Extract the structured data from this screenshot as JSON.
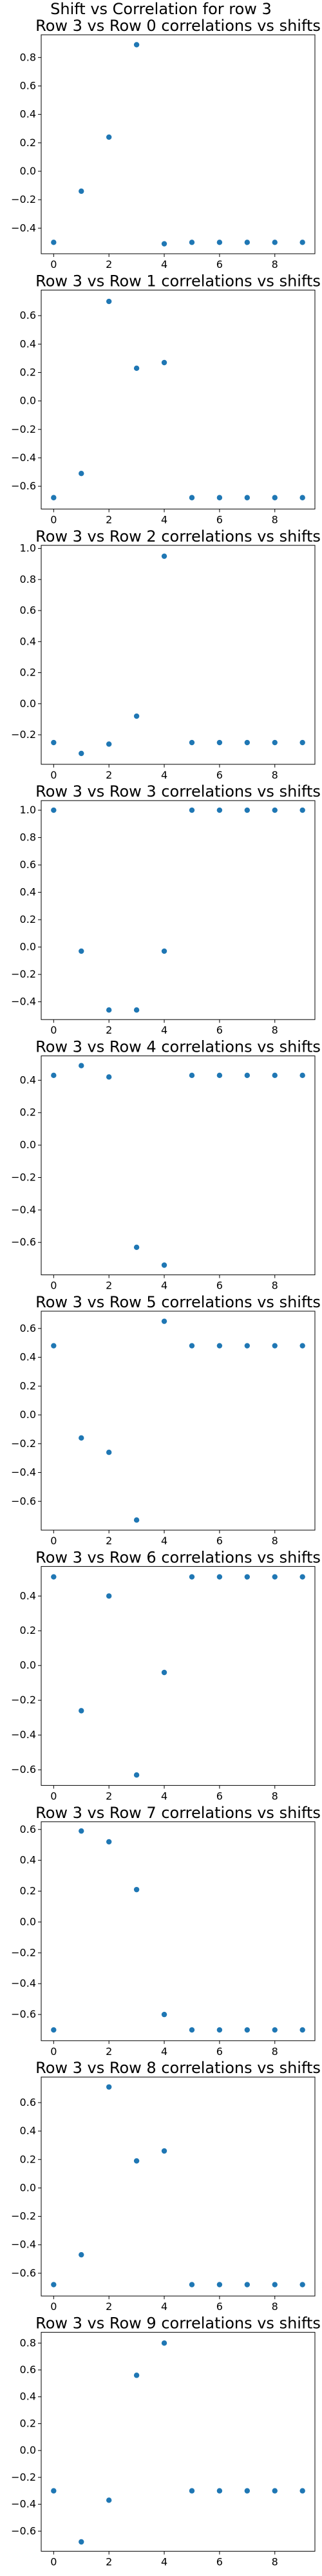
{
  "figure": {
    "suptitle": "Shift vs Correlation for row 3"
  },
  "chart_data": [
    {
      "type": "scatter",
      "title": "Row 3 vs Row 0 correlations vs shifts",
      "xlabel": "",
      "ylabel": "",
      "x": [
        0,
        1,
        2,
        3,
        4,
        5,
        6,
        7,
        8,
        9
      ],
      "y": [
        -0.5,
        -0.14,
        0.24,
        0.89,
        -0.51,
        -0.5,
        -0.5,
        -0.5,
        -0.5,
        -0.5
      ],
      "xlim": [
        -0.45,
        9.45
      ],
      "ylim": [
        -0.58,
        0.96
      ],
      "xticks": [
        0,
        2,
        4,
        6,
        8
      ],
      "yticks": [
        -0.4,
        -0.2,
        0.0,
        0.2,
        0.4,
        0.6,
        0.8
      ],
      "ytick_labels": [
        "−0.4",
        "−0.2",
        "0.0",
        "0.2",
        "0.4",
        "0.6",
        "0.8"
      ],
      "xtick_labels": [
        "0",
        "2",
        "4",
        "6",
        "8"
      ]
    },
    {
      "type": "scatter",
      "title": "Row 3 vs Row 1 correlations vs shifts",
      "xlabel": "",
      "ylabel": "",
      "x": [
        0,
        1,
        2,
        3,
        4,
        5,
        6,
        7,
        8,
        9
      ],
      "y": [
        -0.68,
        -0.51,
        0.7,
        0.23,
        0.27,
        -0.68,
        -0.68,
        -0.68,
        -0.68,
        -0.68
      ],
      "xlim": [
        -0.45,
        9.45
      ],
      "ylim": [
        -0.76,
        0.78
      ],
      "xticks": [
        0,
        2,
        4,
        6,
        8
      ],
      "yticks": [
        -0.6,
        -0.4,
        -0.2,
        0.0,
        0.2,
        0.4,
        0.6
      ],
      "ytick_labels": [
        "−0.6",
        "−0.4",
        "−0.2",
        "0.0",
        "0.2",
        "0.4",
        "0.6"
      ],
      "xtick_labels": [
        "0",
        "2",
        "4",
        "6",
        "8"
      ]
    },
    {
      "type": "scatter",
      "title": "Row 3 vs Row 2 correlations vs shifts",
      "xlabel": "",
      "ylabel": "",
      "x": [
        0,
        1,
        2,
        3,
        4,
        5,
        6,
        7,
        8,
        9
      ],
      "y": [
        -0.25,
        -0.32,
        -0.26,
        -0.08,
        0.95,
        -0.25,
        -0.25,
        -0.25,
        -0.25,
        -0.25
      ],
      "xlim": [
        -0.45,
        9.45
      ],
      "ylim": [
        -0.39,
        1.02
      ],
      "xticks": [
        0,
        2,
        4,
        6,
        8
      ],
      "yticks": [
        -0.2,
        0.0,
        0.2,
        0.4,
        0.6,
        0.8,
        1.0
      ],
      "ytick_labels": [
        "−0.2",
        "0.0",
        "0.2",
        "0.4",
        "0.6",
        "0.8",
        "1.0"
      ],
      "xtick_labels": [
        "0",
        "2",
        "4",
        "6",
        "8"
      ]
    },
    {
      "type": "scatter",
      "title": "Row 3 vs Row 3 correlations vs shifts",
      "xlabel": "",
      "ylabel": "",
      "x": [
        0,
        1,
        2,
        3,
        4,
        5,
        6,
        7,
        8,
        9
      ],
      "y": [
        1.0,
        -0.03,
        -0.46,
        -0.46,
        -0.03,
        1.0,
        1.0,
        1.0,
        1.0,
        1.0
      ],
      "xlim": [
        -0.45,
        9.45
      ],
      "ylim": [
        -0.53,
        1.07
      ],
      "xticks": [
        0,
        2,
        4,
        6,
        8
      ],
      "yticks": [
        -0.4,
        -0.2,
        0.0,
        0.2,
        0.4,
        0.6,
        0.8,
        1.0
      ],
      "ytick_labels": [
        "−0.4",
        "−0.2",
        "0.0",
        "0.2",
        "0.4",
        "0.6",
        "0.8",
        "1.0"
      ],
      "xtick_labels": [
        "0",
        "2",
        "4",
        "6",
        "8"
      ]
    },
    {
      "type": "scatter",
      "title": "Row 3 vs Row 4 correlations vs shifts",
      "xlabel": "",
      "ylabel": "",
      "x": [
        0,
        1,
        2,
        3,
        4,
        5,
        6,
        7,
        8,
        9
      ],
      "y": [
        0.43,
        0.49,
        0.42,
        -0.63,
        -0.74,
        0.43,
        0.43,
        0.43,
        0.43,
        0.43
      ],
      "xlim": [
        -0.45,
        9.45
      ],
      "ylim": [
        -0.8,
        0.55
      ],
      "xticks": [
        0,
        2,
        4,
        6,
        8
      ],
      "yticks": [
        -0.6,
        -0.4,
        -0.2,
        0.0,
        0.2,
        0.4
      ],
      "ytick_labels": [
        "−0.6",
        "−0.4",
        "−0.2",
        "0.0",
        "0.2",
        "0.4"
      ],
      "xtick_labels": [
        "0",
        "2",
        "4",
        "6",
        "8"
      ]
    },
    {
      "type": "scatter",
      "title": "Row 3 vs Row 5 correlations vs shifts",
      "xlabel": "",
      "ylabel": "",
      "x": [
        0,
        1,
        2,
        3,
        4,
        5,
        6,
        7,
        8,
        9
      ],
      "y": [
        0.48,
        -0.16,
        -0.26,
        -0.73,
        0.65,
        0.48,
        0.48,
        0.48,
        0.48,
        0.48
      ],
      "xlim": [
        -0.45,
        9.45
      ],
      "ylim": [
        -0.8,
        0.72
      ],
      "xticks": [
        0,
        2,
        4,
        6,
        8
      ],
      "yticks": [
        -0.6,
        -0.4,
        -0.2,
        0.0,
        0.2,
        0.4,
        0.6
      ],
      "ytick_labels": [
        "−0.6",
        "−0.4",
        "−0.2",
        "0.0",
        "0.2",
        "0.4",
        "0.6"
      ],
      "xtick_labels": [
        "0",
        "2",
        "4",
        "6",
        "8"
      ]
    },
    {
      "type": "scatter",
      "title": "Row 3 vs Row 6 correlations vs shifts",
      "xlabel": "",
      "ylabel": "",
      "x": [
        0,
        1,
        2,
        3,
        4,
        5,
        6,
        7,
        8,
        9
      ],
      "y": [
        0.51,
        -0.26,
        0.4,
        -0.63,
        -0.04,
        0.51,
        0.51,
        0.51,
        0.51,
        0.51
      ],
      "xlim": [
        -0.45,
        9.45
      ],
      "ylim": [
        -0.69,
        0.57
      ],
      "xticks": [
        0,
        2,
        4,
        6,
        8
      ],
      "yticks": [
        -0.6,
        -0.4,
        -0.2,
        0.0,
        0.2,
        0.4
      ],
      "ytick_labels": [
        "−0.6",
        "−0.4",
        "−0.2",
        "0.0",
        "0.2",
        "0.4"
      ],
      "xtick_labels": [
        "0",
        "2",
        "4",
        "6",
        "8"
      ]
    },
    {
      "type": "scatter",
      "title": "Row 3 vs Row 7 correlations vs shifts",
      "xlabel": "",
      "ylabel": "",
      "x": [
        0,
        1,
        2,
        3,
        4,
        5,
        6,
        7,
        8,
        9
      ],
      "y": [
        -0.7,
        0.59,
        0.52,
        0.21,
        -0.6,
        -0.7,
        -0.7,
        -0.7,
        -0.7,
        -0.7
      ],
      "xlim": [
        -0.45,
        9.45
      ],
      "ylim": [
        -0.77,
        0.65
      ],
      "xticks": [
        0,
        2,
        4,
        6,
        8
      ],
      "yticks": [
        -0.6,
        -0.4,
        -0.2,
        0.0,
        0.2,
        0.4,
        0.6
      ],
      "ytick_labels": [
        "−0.6",
        "−0.4",
        "−0.2",
        "0.0",
        "0.2",
        "0.4",
        "0.6"
      ],
      "xtick_labels": [
        "0",
        "2",
        "4",
        "6",
        "8"
      ]
    },
    {
      "type": "scatter",
      "title": "Row 3 vs Row 8 correlations vs shifts",
      "xlabel": "",
      "ylabel": "",
      "x": [
        0,
        1,
        2,
        3,
        4,
        5,
        6,
        7,
        8,
        9
      ],
      "y": [
        -0.68,
        -0.47,
        0.71,
        0.19,
        0.26,
        -0.68,
        -0.68,
        -0.68,
        -0.68,
        -0.68
      ],
      "xlim": [
        -0.45,
        9.45
      ],
      "ylim": [
        -0.76,
        0.78
      ],
      "xticks": [
        0,
        2,
        4,
        6,
        8
      ],
      "yticks": [
        -0.6,
        -0.4,
        -0.2,
        0.0,
        0.2,
        0.4,
        0.6
      ],
      "ytick_labels": [
        "−0.6",
        "−0.4",
        "−0.2",
        "0.0",
        "0.2",
        "0.4",
        "0.6"
      ],
      "xtick_labels": [
        "0",
        "2",
        "4",
        "6",
        "8"
      ]
    },
    {
      "type": "scatter",
      "title": "Row 3 vs Row 9 correlations vs shifts",
      "xlabel": "",
      "ylabel": "",
      "x": [
        0,
        1,
        2,
        3,
        4,
        5,
        6,
        7,
        8,
        9
      ],
      "y": [
        -0.3,
        -0.68,
        -0.37,
        0.56,
        0.8,
        -0.3,
        -0.3,
        -0.3,
        -0.3,
        -0.3
      ],
      "xlim": [
        -0.45,
        9.45
      ],
      "ylim": [
        -0.75,
        0.88
      ],
      "xticks": [
        0,
        2,
        4,
        6,
        8
      ],
      "yticks": [
        -0.6,
        -0.4,
        -0.2,
        0.0,
        0.2,
        0.4,
        0.6,
        0.8
      ],
      "ytick_labels": [
        "−0.6",
        "−0.4",
        "−0.2",
        "0.0",
        "0.2",
        "0.4",
        "0.6",
        "0.8"
      ],
      "xtick_labels": [
        "0",
        "2",
        "4",
        "6",
        "8"
      ]
    }
  ]
}
